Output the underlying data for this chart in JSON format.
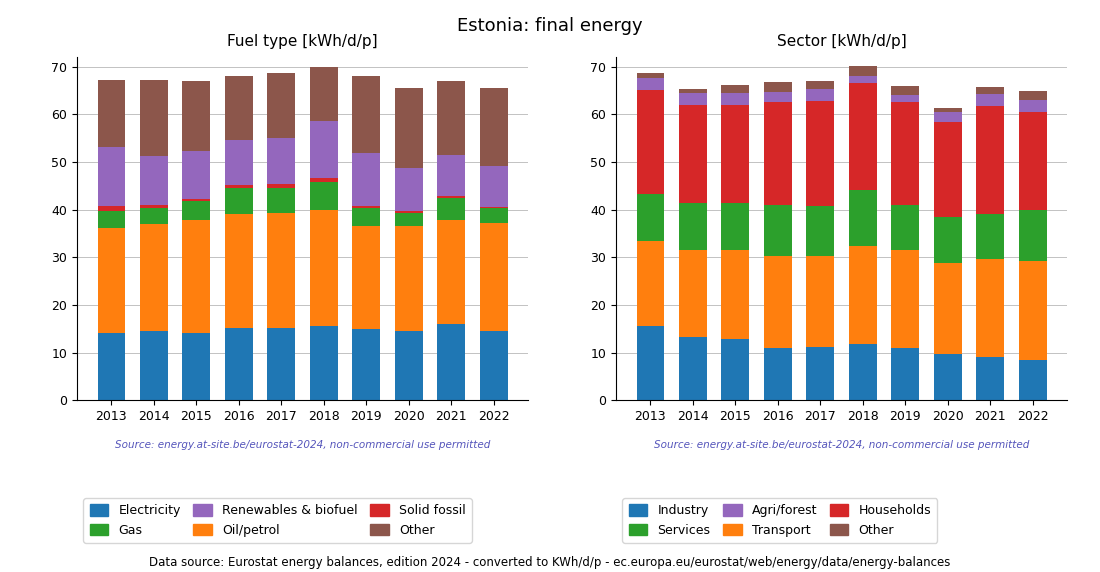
{
  "years": [
    2013,
    2014,
    2015,
    2016,
    2017,
    2018,
    2019,
    2020,
    2021,
    2022
  ],
  "title": "Estonia: final energy",
  "source_text": "Source: energy.at-site.be/eurostat-2024, non-commercial use permitted",
  "footer_text": "Data source: Eurostat energy balances, edition 2024 - converted to KWh/d/p - ec.europa.eu/eurostat/web/energy/data/energy-balances",
  "fuel_title": "Fuel type [kWh/d/p]",
  "fuel_series": {
    "Electricity": [
      14.2,
      14.5,
      14.1,
      15.1,
      15.1,
      15.6,
      15.0,
      14.5,
      16.1,
      14.6
    ],
    "Oil/petrol": [
      22.0,
      22.5,
      23.7,
      24.0,
      24.2,
      24.3,
      21.5,
      22.0,
      21.8,
      22.7
    ],
    "Gas": [
      3.6,
      3.3,
      4.0,
      5.5,
      5.3,
      6.0,
      3.8,
      2.8,
      4.5,
      3.0
    ],
    "Solid fossil": [
      0.9,
      0.7,
      0.5,
      0.6,
      0.7,
      0.7,
      0.5,
      0.4,
      0.5,
      0.3
    ],
    "Renewables & biofuel": [
      12.5,
      10.2,
      10.0,
      9.5,
      9.8,
      12.0,
      11.2,
      9.0,
      8.5,
      8.5
    ],
    "Other": [
      14.0,
      16.0,
      14.7,
      13.3,
      13.5,
      11.4,
      16.0,
      16.8,
      15.6,
      16.4
    ]
  },
  "fuel_colors": {
    "Electricity": "#1f77b4",
    "Oil/petrol": "#ff7f0e",
    "Gas": "#2ca02c",
    "Solid fossil": "#d62728",
    "Renewables & biofuel": "#9467bd",
    "Other": "#8c564b"
  },
  "sector_title": "Sector [kWh/d/p]",
  "sector_series": {
    "Industry": [
      15.6,
      13.4,
      12.8,
      11.0,
      11.2,
      11.8,
      11.0,
      9.8,
      9.2,
      8.5
    ],
    "Transport": [
      17.8,
      18.2,
      18.8,
      19.2,
      19.0,
      20.5,
      20.5,
      19.0,
      20.5,
      20.7
    ],
    "Services": [
      9.8,
      9.8,
      9.8,
      10.8,
      10.6,
      11.8,
      9.5,
      9.6,
      9.5,
      10.8
    ],
    "Households": [
      22.0,
      20.5,
      20.5,
      21.5,
      22.0,
      22.5,
      21.5,
      20.0,
      22.5,
      20.5
    ],
    "Agri/forest": [
      2.5,
      2.5,
      2.5,
      2.3,
      2.5,
      1.5,
      1.5,
      2.0,
      2.5,
      2.5
    ],
    "Other": [
      1.0,
      1.0,
      1.8,
      1.9,
      1.8,
      2.0,
      2.0,
      0.9,
      1.6,
      2.0
    ]
  },
  "sector_colors": {
    "Industry": "#1f77b4",
    "Transport": "#ff7f0e",
    "Services": "#2ca02c",
    "Households": "#d62728",
    "Agri/forest": "#9467bd",
    "Other": "#8c564b"
  },
  "ylim": [
    0,
    72
  ],
  "yticks": [
    0,
    10,
    20,
    30,
    40,
    50,
    60,
    70
  ],
  "source_color": "#5555bb",
  "footer_color": "#000000",
  "title_fontsize": 13,
  "subtitle_fontsize": 11,
  "tick_fontsize": 9,
  "legend_fontsize": 9,
  "source_fontsize": 7.5,
  "footer_fontsize": 8.5
}
